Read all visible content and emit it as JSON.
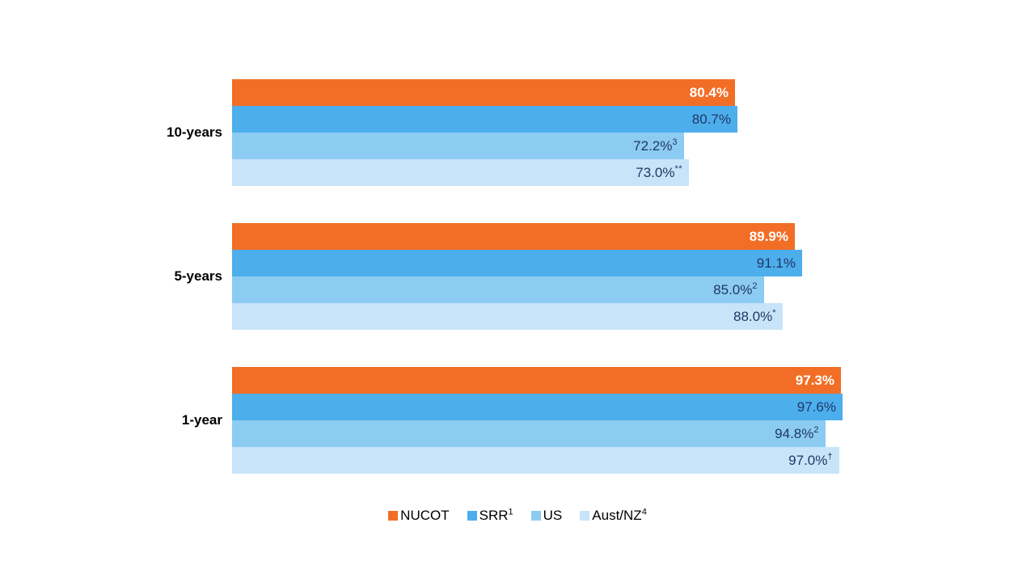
{
  "chart_data": {
    "type": "bar",
    "orientation": "horizontal",
    "title": "",
    "xlabel": "",
    "ylabel": "",
    "xlim": [
      0,
      100
    ],
    "grid": false,
    "axis_visible": false,
    "background_color": "#FFFFFF",
    "value_label_color": "#1F3864",
    "categories": [
      "10-years",
      "5-years",
      "1-year"
    ],
    "series": [
      {
        "name": "NUCOT",
        "name_superscript": "",
        "color": "#F26E26",
        "label_color": "#FFFFFF",
        "label_bold": true,
        "values": [
          80.4,
          89.9,
          97.3
        ],
        "labels": [
          "80.4%",
          "89.9%",
          "97.3%"
        ],
        "label_superscripts": [
          "",
          "",
          ""
        ]
      },
      {
        "name": "SRR",
        "name_superscript": "1",
        "color": "#4DAEEC",
        "label_color": "#1F3864",
        "label_bold": false,
        "values": [
          80.7,
          91.1,
          97.6
        ],
        "labels": [
          "80.7%",
          "91.1%",
          "97.6%"
        ],
        "label_superscripts": [
          "",
          "",
          ""
        ]
      },
      {
        "name": "US",
        "name_superscript": "",
        "color": "#8CCBF2",
        "label_color": "#1F3864",
        "label_bold": false,
        "values": [
          72.2,
          85.0,
          94.8
        ],
        "labels": [
          "72.2%",
          "85.0%",
          "94.8%"
        ],
        "label_superscripts": [
          "3",
          "2",
          "2"
        ]
      },
      {
        "name": "Aust/NZ",
        "name_superscript": "4",
        "color": "#C7E4F8",
        "label_color": "#1F3864",
        "label_bold": false,
        "values": [
          73.0,
          88.0,
          97.0
        ],
        "labels": [
          "73.0%",
          "88.0%",
          "97.0%"
        ],
        "label_superscripts": [
          "**",
          "*",
          "†"
        ]
      }
    ],
    "legend": {
      "position": "bottom-center",
      "entries": [
        "NUCOT",
        "SRR¹",
        "US",
        "Aust/NZ⁴"
      ]
    }
  }
}
